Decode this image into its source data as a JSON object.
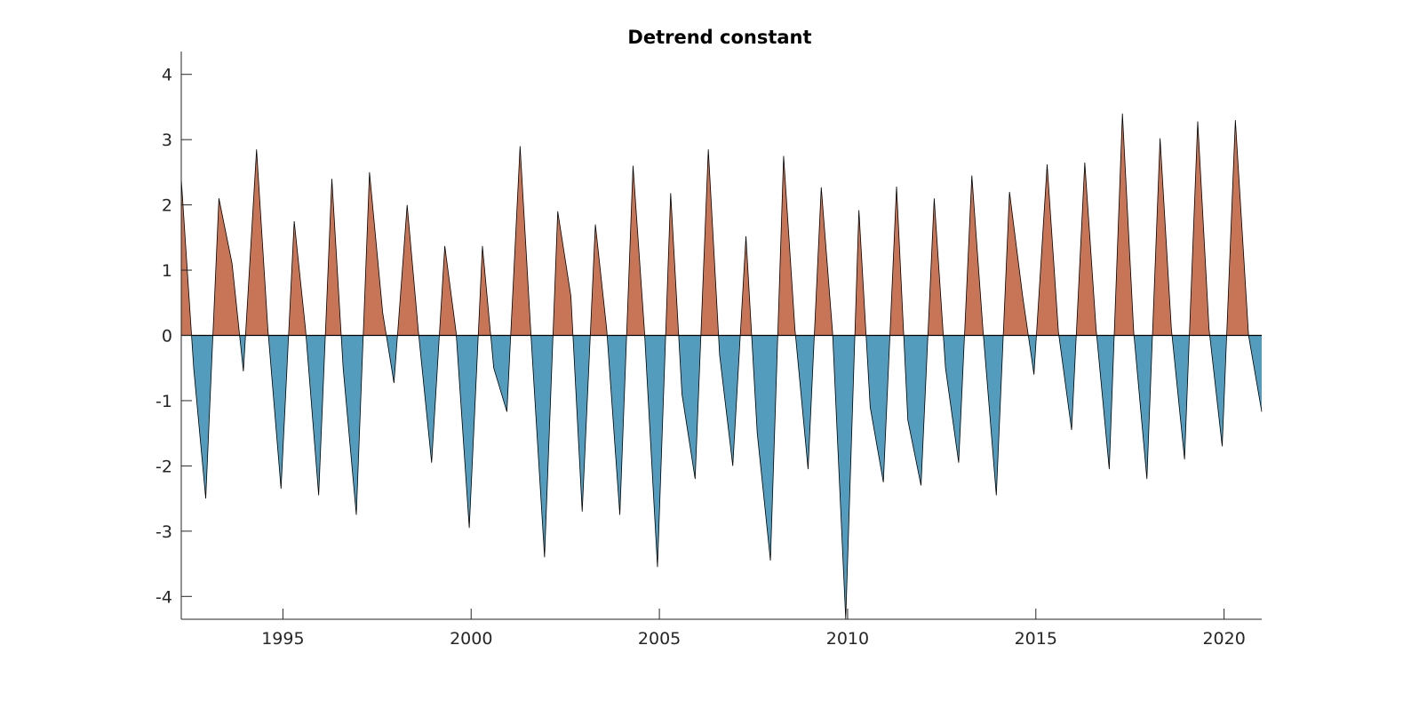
{
  "chart_data": {
    "type": "area",
    "title": "Detrend constant",
    "xlabel": "",
    "ylabel": "",
    "xlim": [
      1992.3,
      2021.0
    ],
    "ylim": [
      -4.35,
      4.3
    ],
    "xticks": [
      1995,
      2000,
      2005,
      2010,
      2015,
      2020
    ],
    "yticks": [
      -4,
      -3,
      -2,
      -1,
      0,
      1,
      2,
      3,
      4
    ],
    "grid": false,
    "baseline": 0,
    "colors": {
      "positive": "#c87457",
      "negative": "#539cbe",
      "line": "#000000",
      "axis": "#262626"
    },
    "series": [
      {
        "x": [
          1992.3,
          1992.63,
          1992.95,
          1993.3,
          1993.65,
          1993.95,
          1994.3,
          1994.6,
          1994.95,
          1995.3,
          1995.6,
          1995.95,
          1996.3,
          1996.6,
          1996.95,
          1997.3,
          1997.65,
          1997.95,
          1998.3,
          1998.6,
          1998.95,
          1999.3,
          1999.6,
          1999.95,
          2000.3,
          2000.6,
          2000.95,
          2001.3,
          2001.6,
          2001.95,
          2002.3,
          2002.65,
          2002.95,
          2003.3,
          2003.6,
          2003.95,
          2004.3,
          2004.6,
          2004.95,
          2005.3,
          2005.6,
          2005.95,
          2006.3,
          2006.6,
          2006.95,
          2007.3,
          2007.6,
          2007.95,
          2008.3,
          2008.6,
          2008.95,
          2009.3,
          2009.6,
          2009.95,
          2010.3,
          2010.6,
          2010.95,
          2011.3,
          2011.6,
          2011.95,
          2012.3,
          2012.6,
          2012.95,
          2013.3,
          2013.6,
          2013.95,
          2014.3,
          2014.65,
          2014.95,
          2015.3,
          2015.6,
          2015.95,
          2016.3,
          2016.6,
          2016.95,
          2017.3,
          2017.6,
          2017.95,
          2018.3,
          2018.6,
          2018.95,
          2019.3,
          2019.6,
          2019.95,
          2020.3,
          2020.65,
          2021.0
        ],
        "y": [
          2.4,
          -0.5,
          -2.5,
          2.1,
          1.1,
          -0.55,
          2.85,
          0.1,
          -2.35,
          1.75,
          0.1,
          -2.45,
          2.4,
          -0.5,
          -2.75,
          2.5,
          0.35,
          -0.73,
          2.0,
          0.05,
          -1.95,
          1.37,
          0.05,
          -2.95,
          1.37,
          -0.5,
          -1.17,
          2.9,
          -0.1,
          -3.4,
          1.9,
          0.6,
          -2.7,
          1.7,
          0.1,
          -2.75,
          2.6,
          0.1,
          -3.55,
          2.18,
          -0.9,
          -2.2,
          2.85,
          -0.3,
          -2.0,
          1.52,
          -1.5,
          -3.45,
          2.75,
          0.1,
          -2.05,
          2.27,
          0.05,
          -4.35,
          1.92,
          -1.1,
          -2.25,
          2.28,
          -1.3,
          -2.3,
          2.1,
          -0.5,
          -1.95,
          2.45,
          0.05,
          -2.45,
          2.2,
          0.6,
          -0.6,
          2.62,
          0.05,
          -1.45,
          2.65,
          0.1,
          -2.05,
          3.4,
          0.05,
          -2.2,
          3.02,
          0.1,
          -1.9,
          3.28,
          0.1,
          -1.7,
          3.3,
          0.0,
          -1.17
        ]
      }
    ]
  }
}
